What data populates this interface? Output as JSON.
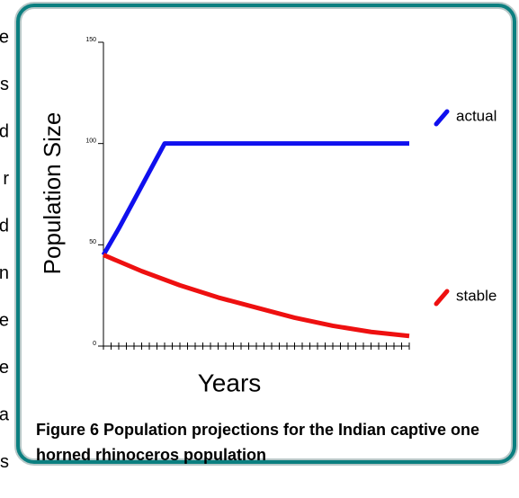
{
  "background_text": [
    "e",
    "s",
    "d",
    "r",
    "d",
    "n",
    "e",
    "e",
    "a",
    "s"
  ],
  "chart_data": {
    "type": "line",
    "ylabel": "Population Size",
    "xlabel": "Years",
    "caption": "Figure 6 Population projections for the Indian captive one horned rhinoceros population",
    "ylim": [
      0,
      150
    ],
    "yticks": [
      0,
      50,
      100,
      150
    ],
    "xlim": [
      0,
      40
    ],
    "xticks": [
      0,
      1,
      2,
      3,
      4,
      5,
      6,
      7,
      8,
      9,
      10,
      11,
      12,
      13,
      14,
      15,
      16,
      17,
      18,
      19,
      20,
      21,
      22,
      23,
      24,
      25,
      26,
      27,
      28,
      29,
      30,
      31,
      32,
      33,
      34,
      35,
      36,
      37,
      38,
      39,
      40
    ],
    "series": [
      {
        "name": "actual",
        "color": "#1010ee",
        "x": [
          0,
          2,
          4,
          6,
          8,
          40
        ],
        "values": [
          45,
          58,
          72,
          86,
          100,
          100
        ]
      },
      {
        "name": "stable",
        "color": "#ee1010",
        "x": [
          0,
          5,
          10,
          15,
          20,
          25,
          30,
          35,
          40
        ],
        "values": [
          45,
          37,
          30,
          24,
          19,
          14,
          10,
          7,
          5
        ]
      }
    ]
  }
}
